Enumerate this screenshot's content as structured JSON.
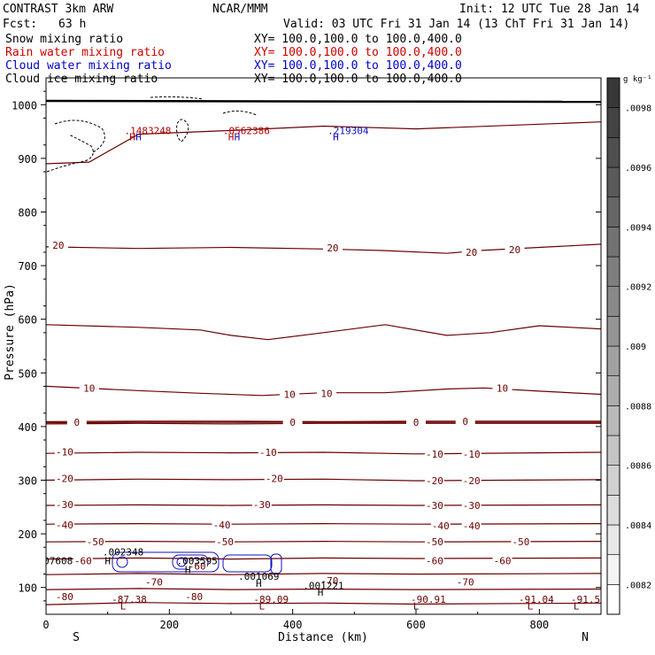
{
  "header": {
    "model": "CONTRAST  3km ARW",
    "org": "NCAR/MMM",
    "init": "Init: 12 UTC Tue 28 Jan 14",
    "fcst_label": "Fcst:",
    "fcst_value": "63 h",
    "valid": "Valid: 03 UTC Fri 31 Jan 14 (13 ChT Fri 31 Jan 14)"
  },
  "fields": [
    {
      "name": "Snow mixing ratio",
      "xy": "XY= 100.0,100.0 to 100.0,400.0",
      "color": "#000000"
    },
    {
      "name": "Rain water mixing ratio",
      "xy": "XY= 100.0,100.0 to 100.0,400.0",
      "color": "#cc0000"
    },
    {
      "name": "Cloud water mixing ratio",
      "xy": "XY= 100.0,100.0 to 100.0,400.0",
      "color": "#0000cc"
    },
    {
      "name": "Cloud ice mixing ratio",
      "xy": "XY= 100.0,100.0 to 100.0,400.0",
      "color": "#000000"
    }
  ],
  "colors": {
    "temperature_contour": "#6b0000",
    "cloud_water": "#1010c0",
    "rain_water": "#b00000",
    "snow": "#000000",
    "ground": "#000000"
  },
  "chart_data": {
    "type": "cross-section contour",
    "xlabel": "Distance (km)",
    "ylabel": "Pressure (hPa)",
    "xlim": [
      0,
      900
    ],
    "ylim": [
      1050,
      50
    ],
    "x_ticks": [
      0,
      200,
      400,
      600,
      800
    ],
    "y_ticks": [
      100,
      200,
      300,
      400,
      500,
      600,
      700,
      800,
      900,
      1000
    ],
    "end_labels": {
      "left": "S",
      "right": "N"
    },
    "temperature_contours": [
      {
        "level": "-80",
        "pts": [
          [
            0,
            68
          ],
          [
            150,
            72
          ],
          [
            300,
            70
          ],
          [
            450,
            71
          ],
          [
            600,
            69
          ],
          [
            900,
            71
          ]
        ]
      },
      {
        "level": "-80",
        "pts": [
          [
            0,
            96
          ],
          [
            150,
            98
          ],
          [
            300,
            96
          ],
          [
            450,
            97
          ],
          [
            600,
            96
          ],
          [
            900,
            97
          ]
        ]
      },
      {
        "level": "-70",
        "pts": [
          [
            0,
            124
          ],
          [
            150,
            126
          ],
          [
            300,
            124
          ],
          [
            450,
            126
          ],
          [
            600,
            125
          ],
          [
            900,
            126
          ]
        ]
      },
      {
        "level": "-60",
        "pts": [
          [
            0,
            153
          ],
          [
            150,
            155
          ],
          [
            300,
            153
          ],
          [
            450,
            155
          ],
          [
            600,
            154
          ],
          [
            900,
            155
          ]
        ]
      },
      {
        "level": "-50",
        "pts": [
          [
            0,
            185
          ],
          [
            150,
            186
          ],
          [
            300,
            185
          ],
          [
            450,
            186
          ],
          [
            600,
            185
          ],
          [
            900,
            186
          ]
        ]
      },
      {
        "level": "-40",
        "pts": [
          [
            0,
            218
          ],
          [
            150,
            219
          ],
          [
            300,
            218
          ],
          [
            450,
            219
          ],
          [
            600,
            218
          ],
          [
            900,
            219
          ]
        ]
      },
      {
        "level": "-30",
        "pts": [
          [
            0,
            253
          ],
          [
            150,
            254
          ],
          [
            300,
            253
          ],
          [
            450,
            254
          ],
          [
            600,
            253
          ],
          [
            900,
            254
          ]
        ]
      },
      {
        "level": "-20",
        "pts": [
          [
            0,
            300
          ],
          [
            150,
            302
          ],
          [
            300,
            301
          ],
          [
            450,
            302
          ],
          [
            600,
            299
          ],
          [
            900,
            301
          ]
        ]
      },
      {
        "level": "-10",
        "pts": [
          [
            0,
            350
          ],
          [
            150,
            352
          ],
          [
            300,
            351
          ],
          [
            450,
            352
          ],
          [
            600,
            349
          ],
          [
            900,
            352
          ]
        ]
      },
      {
        "level": "0",
        "pts": [
          [
            0,
            405
          ],
          [
            150,
            406
          ],
          [
            300,
            405
          ],
          [
            450,
            406
          ],
          [
            600,
            406
          ],
          [
            900,
            406
          ]
        ]
      },
      {
        "level": "0",
        "pts": [
          [
            0,
            407
          ],
          [
            150,
            408
          ],
          [
            300,
            408
          ],
          [
            450,
            408
          ],
          [
            600,
            408
          ],
          [
            900,
            408
          ]
        ]
      },
      {
        "level": "0",
        "pts": [
          [
            0,
            409
          ],
          [
            150,
            410
          ],
          [
            300,
            410
          ],
          [
            450,
            409
          ],
          [
            600,
            410
          ],
          [
            900,
            410
          ]
        ]
      },
      {
        "level": "10",
        "pts": [
          [
            0,
            475
          ],
          [
            150,
            467
          ],
          [
            250,
            462
          ],
          [
            350,
            458
          ],
          [
            450,
            463
          ],
          [
            550,
            463
          ],
          [
            650,
            470
          ],
          [
            710,
            472
          ],
          [
            800,
            466
          ],
          [
            900,
            460
          ]
        ]
      },
      {
        "level": "20",
        "pts": [
          [
            0,
            590
          ],
          [
            150,
            585
          ],
          [
            250,
            580
          ],
          [
            300,
            570
          ],
          [
            360,
            562
          ],
          [
            450,
            575
          ],
          [
            550,
            590
          ],
          [
            650,
            570
          ],
          [
            720,
            575
          ],
          [
            800,
            588
          ],
          [
            900,
            582
          ]
        ]
      },
      {
        "level": "20",
        "pts": [
          [
            0,
            735
          ],
          [
            150,
            732
          ],
          [
            300,
            734
          ],
          [
            450,
            731
          ],
          [
            550,
            728
          ],
          [
            650,
            723
          ],
          [
            700,
            728
          ],
          [
            800,
            734
          ],
          [
            900,
            740
          ]
        ]
      },
      {
        "level": "30",
        "pts": [
          [
            0,
            890
          ],
          [
            70,
            893
          ],
          [
            150,
            945
          ],
          [
            300,
            952
          ],
          [
            450,
            960
          ],
          [
            600,
            955
          ],
          [
            900,
            968
          ]
        ]
      }
    ],
    "contour_labels": [
      {
        "text": "-80",
        "x": 30,
        "p": 83
      },
      {
        "text": "-80",
        "x": 240,
        "p": 83
      },
      {
        "text": "-70",
        "x": 175,
        "p": 110
      },
      {
        "text": "-70",
        "x": 460,
        "p": 113
      },
      {
        "text": "-70",
        "x": 680,
        "p": 110
      },
      {
        "text": "-60",
        "x": 60,
        "p": 150
      },
      {
        "text": "-60",
        "x": 245,
        "p": 140
      },
      {
        "text": "-60",
        "x": 630,
        "p": 150
      },
      {
        "text": "-60",
        "x": 740,
        "p": 150
      },
      {
        "text": "-50",
        "x": 80,
        "p": 185
      },
      {
        "text": "-50",
        "x": 290,
        "p": 185
      },
      {
        "text": "-50",
        "x": 630,
        "p": 185
      },
      {
        "text": "-50",
        "x": 770,
        "p": 185
      },
      {
        "text": "-40",
        "x": 30,
        "p": 217
      },
      {
        "text": "-40",
        "x": 285,
        "p": 217
      },
      {
        "text": "-40",
        "x": 640,
        "p": 215
      },
      {
        "text": "-40",
        "x": 690,
        "p": 215
      },
      {
        "text": "-30",
        "x": 30,
        "p": 255
      },
      {
        "text": "-30",
        "x": 350,
        "p": 255
      },
      {
        "text": "-30",
        "x": 630,
        "p": 253
      },
      {
        "text": "-30",
        "x": 690,
        "p": 253
      },
      {
        "text": "-20",
        "x": 30,
        "p": 303
      },
      {
        "text": "-20",
        "x": 370,
        "p": 303
      },
      {
        "text": "-20",
        "x": 630,
        "p": 299
      },
      {
        "text": "-20",
        "x": 690,
        "p": 299
      },
      {
        "text": "-10",
        "x": 30,
        "p": 353
      },
      {
        "text": "-10",
        "x": 360,
        "p": 352
      },
      {
        "text": "-10",
        "x": 630,
        "p": 349
      },
      {
        "text": "-10",
        "x": 690,
        "p": 349
      },
      {
        "text": "0",
        "x": 50,
        "p": 408
      },
      {
        "text": "0",
        "x": 400,
        "p": 408
      },
      {
        "text": "0",
        "x": 600,
        "p": 408
      },
      {
        "text": "0",
        "x": 680,
        "p": 410
      },
      {
        "text": "10",
        "x": 70,
        "p": 472
      },
      {
        "text": "10",
        "x": 395,
        "p": 460
      },
      {
        "text": "10",
        "x": 455,
        "p": 462
      },
      {
        "text": "10",
        "x": 740,
        "p": 472
      },
      {
        "text": "20",
        "x": 20,
        "p": 738
      },
      {
        "text": "20",
        "x": 465,
        "p": 733
      },
      {
        "text": "20",
        "x": 690,
        "p": 725
      },
      {
        "text": "20",
        "x": 760,
        "p": 730
      }
    ],
    "extrema": [
      {
        "text": "L",
        "x": 125,
        "p": 66,
        "color": "#6b0000"
      },
      {
        "text": "-87.38",
        "x": 135,
        "p": 78,
        "color": "#6b0000"
      },
      {
        "text": "L",
        "x": 350,
        "p": 66,
        "color": "#6b0000"
      },
      {
        "text": "-89.09",
        "x": 365,
        "p": 78,
        "color": "#6b0000"
      },
      {
        "text": "L",
        "x": 600,
        "p": 66,
        "color": "#6b0000"
      },
      {
        "text": "-90.91",
        "x": 620,
        "p": 78,
        "color": "#6b0000"
      },
      {
        "text": "L",
        "x": 785,
        "p": 66,
        "color": "#6b0000"
      },
      {
        "text": "-91.04",
        "x": 795,
        "p": 78,
        "color": "#6b0000"
      },
      {
        "text": "L",
        "x": 860,
        "p": 66,
        "color": "#6b0000"
      },
      {
        "text": "-91.5",
        "x": 875,
        "p": 78,
        "color": "#6b0000"
      },
      {
        "text": "H",
        "x": 445,
        "p": 91,
        "color": "#000000"
      },
      {
        "text": ".001221",
        "x": 450,
        "p": 104,
        "color": "#000000"
      },
      {
        "text": "H",
        "x": 345,
        "p": 108,
        "color": "#000000"
      },
      {
        "text": ".001069",
        "x": 345,
        "p": 121,
        "color": "#000000"
      },
      {
        "text": "H",
        "x": 230,
        "p": 133,
        "color": "#000000"
      },
      {
        "text": ".003595",
        "x": 245,
        "p": 150,
        "color": "#000000"
      },
      {
        "text": "H",
        "x": 100,
        "p": 150,
        "color": "#000000"
      },
      {
        "text": ".002348",
        "x": 125,
        "p": 166,
        "color": "#000000"
      },
      {
        "text": ".07608",
        "x": 15,
        "p": 150,
        "color": "#000000"
      },
      {
        "text": "H",
        "x": 150,
        "p": 940,
        "color": "#1010c0"
      },
      {
        "text": "H",
        "x": 310,
        "p": 940,
        "color": "#1010c0"
      },
      {
        "text": "H",
        "x": 470,
        "p": 940,
        "color": "#1010c0"
      },
      {
        "text": ".219304",
        "x": 490,
        "p": 952,
        "color": "#1010c0"
      },
      {
        "text": "H",
        "x": 140,
        "p": 940,
        "color": "#b00000"
      },
      {
        "text": ".1483248",
        "x": 165,
        "p": 952,
        "color": "#b00000"
      },
      {
        "text": "H",
        "x": 300,
        "p": 940,
        "color": "#b00000"
      },
      {
        "text": ".0562386",
        "x": 325,
        "p": 952,
        "color": "#b00000"
      }
    ],
    "ground_pressure": 1007,
    "colorbar": {
      "unit": "g kg⁻¹",
      "ticks": [
        ".0082",
        ".0084",
        ".0086",
        ".0088",
        ".009",
        ".0092",
        ".0094",
        ".0096",
        ".0098"
      ],
      "min": 0.0081,
      "max": 0.0099,
      "step": 0.0001
    }
  }
}
